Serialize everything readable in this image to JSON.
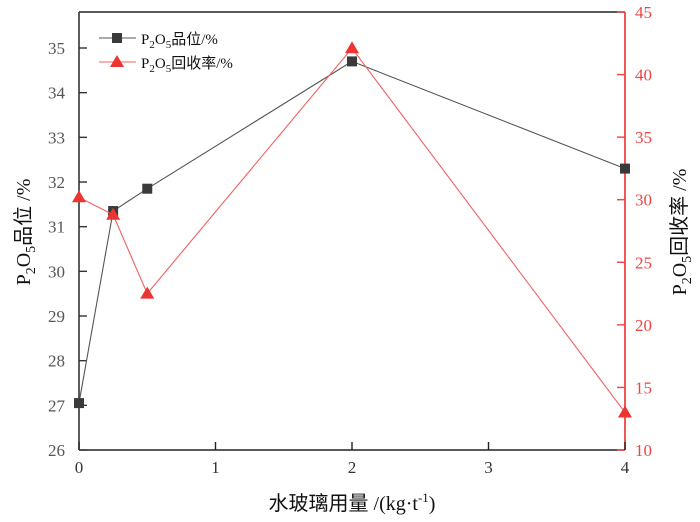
{
  "chart_data": {
    "type": "line",
    "title": "",
    "xlabel": "水玻璃用量 /(kg·t⁻¹)",
    "xlabel_parts": {
      "main": "水玻璃用量 /(kg·t",
      "sup": "-1",
      "tail": ")"
    },
    "ylabel_left": "P2O5品位 /%",
    "ylabel_right": "P2O5回收率 /%",
    "xlim": [
      0,
      4
    ],
    "ylim_left": [
      26,
      35.5
    ],
    "ylim_right": [
      10,
      45
    ],
    "xticks": [
      0,
      1,
      2,
      3,
      4
    ],
    "yticks_left": [
      26,
      27,
      28,
      29,
      30,
      31,
      32,
      33,
      34,
      35
    ],
    "yticks_right": [
      10,
      15,
      20,
      25,
      30,
      35,
      40,
      45
    ],
    "grid": false,
    "legend_position": "upper left",
    "x": [
      0,
      0.25,
      0.5,
      2,
      4
    ],
    "series": [
      {
        "name": "P2O5品位/%",
        "axis": "left",
        "marker": "square",
        "color": "#3a3a3a",
        "values": [
          27.05,
          31.35,
          31.85,
          34.7,
          32.3
        ]
      },
      {
        "name": "P2O5回收率/%",
        "axis": "right",
        "marker": "triangle",
        "color": "#ee3333",
        "values": [
          30.2,
          28.8,
          22.5,
          42.1,
          13.0
        ]
      }
    ]
  },
  "legend": {
    "items": [
      {
        "prefix": "P",
        "sub1": "2",
        "mid": "O",
        "sub2": "5",
        "suffix": "品位/%"
      },
      {
        "prefix": "P",
        "sub1": "2",
        "mid": "O",
        "sub2": "5",
        "suffix": "回收率/%"
      }
    ]
  },
  "axis_titles": {
    "left": {
      "prefix": "P",
      "sub1": "2",
      "mid": "O",
      "sub2": "5",
      "suffix": "品位 /%"
    },
    "right": {
      "prefix": "P",
      "sub1": "2",
      "mid": "O",
      "sub2": "5",
      "suffix": "回收率 /%"
    }
  },
  "colors": {
    "left_axis": "#333333",
    "right_axis": "#ee4444",
    "grade": "#3a3a3a",
    "recovery": "#ee3333",
    "left_tick_text": "#555555",
    "right_tick_text": "#ee4444"
  }
}
